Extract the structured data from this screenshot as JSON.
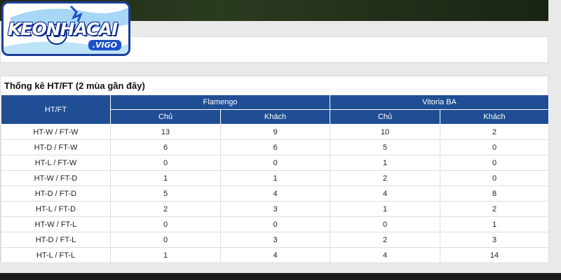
{
  "logo": {
    "main": "KEONHACAI",
    "sub": ".VIGO"
  },
  "stats": {
    "title": "Thống kê HT/FT (2 mùa gần đây)",
    "col_header": "HT/FT",
    "teams": [
      "Flamengo",
      "Vitoria BA"
    ],
    "sub_headers": [
      "Chủ",
      "Khách",
      "Chủ",
      "Khách"
    ],
    "rows": [
      {
        "label": "HT-W / FT-W",
        "values": [
          "13",
          "9",
          "10",
          "2"
        ]
      },
      {
        "label": "HT-D / FT-W",
        "values": [
          "6",
          "6",
          "5",
          "0"
        ]
      },
      {
        "label": "HT-L / FT-W",
        "values": [
          "0",
          "0",
          "1",
          "0"
        ]
      },
      {
        "label": "HT-W / FT-D",
        "values": [
          "1",
          "1",
          "2",
          "0"
        ]
      },
      {
        "label": "HT-D / FT-D",
        "values": [
          "5",
          "4",
          "4",
          "8"
        ]
      },
      {
        "label": "HT-L / FT-D",
        "values": [
          "2",
          "3",
          "1",
          "2"
        ]
      },
      {
        "label": "HT-W / FT-L",
        "values": [
          "0",
          "0",
          "0",
          "1"
        ]
      },
      {
        "label": "HT-D / FT-L",
        "values": [
          "0",
          "3",
          "2",
          "3"
        ]
      },
      {
        "label": "HT-L / FT-L",
        "values": [
          "1",
          "4",
          "4",
          "14"
        ]
      }
    ]
  },
  "colors": {
    "header_blue": "#1f4e94",
    "logo_blue": "#1c3f9b"
  }
}
